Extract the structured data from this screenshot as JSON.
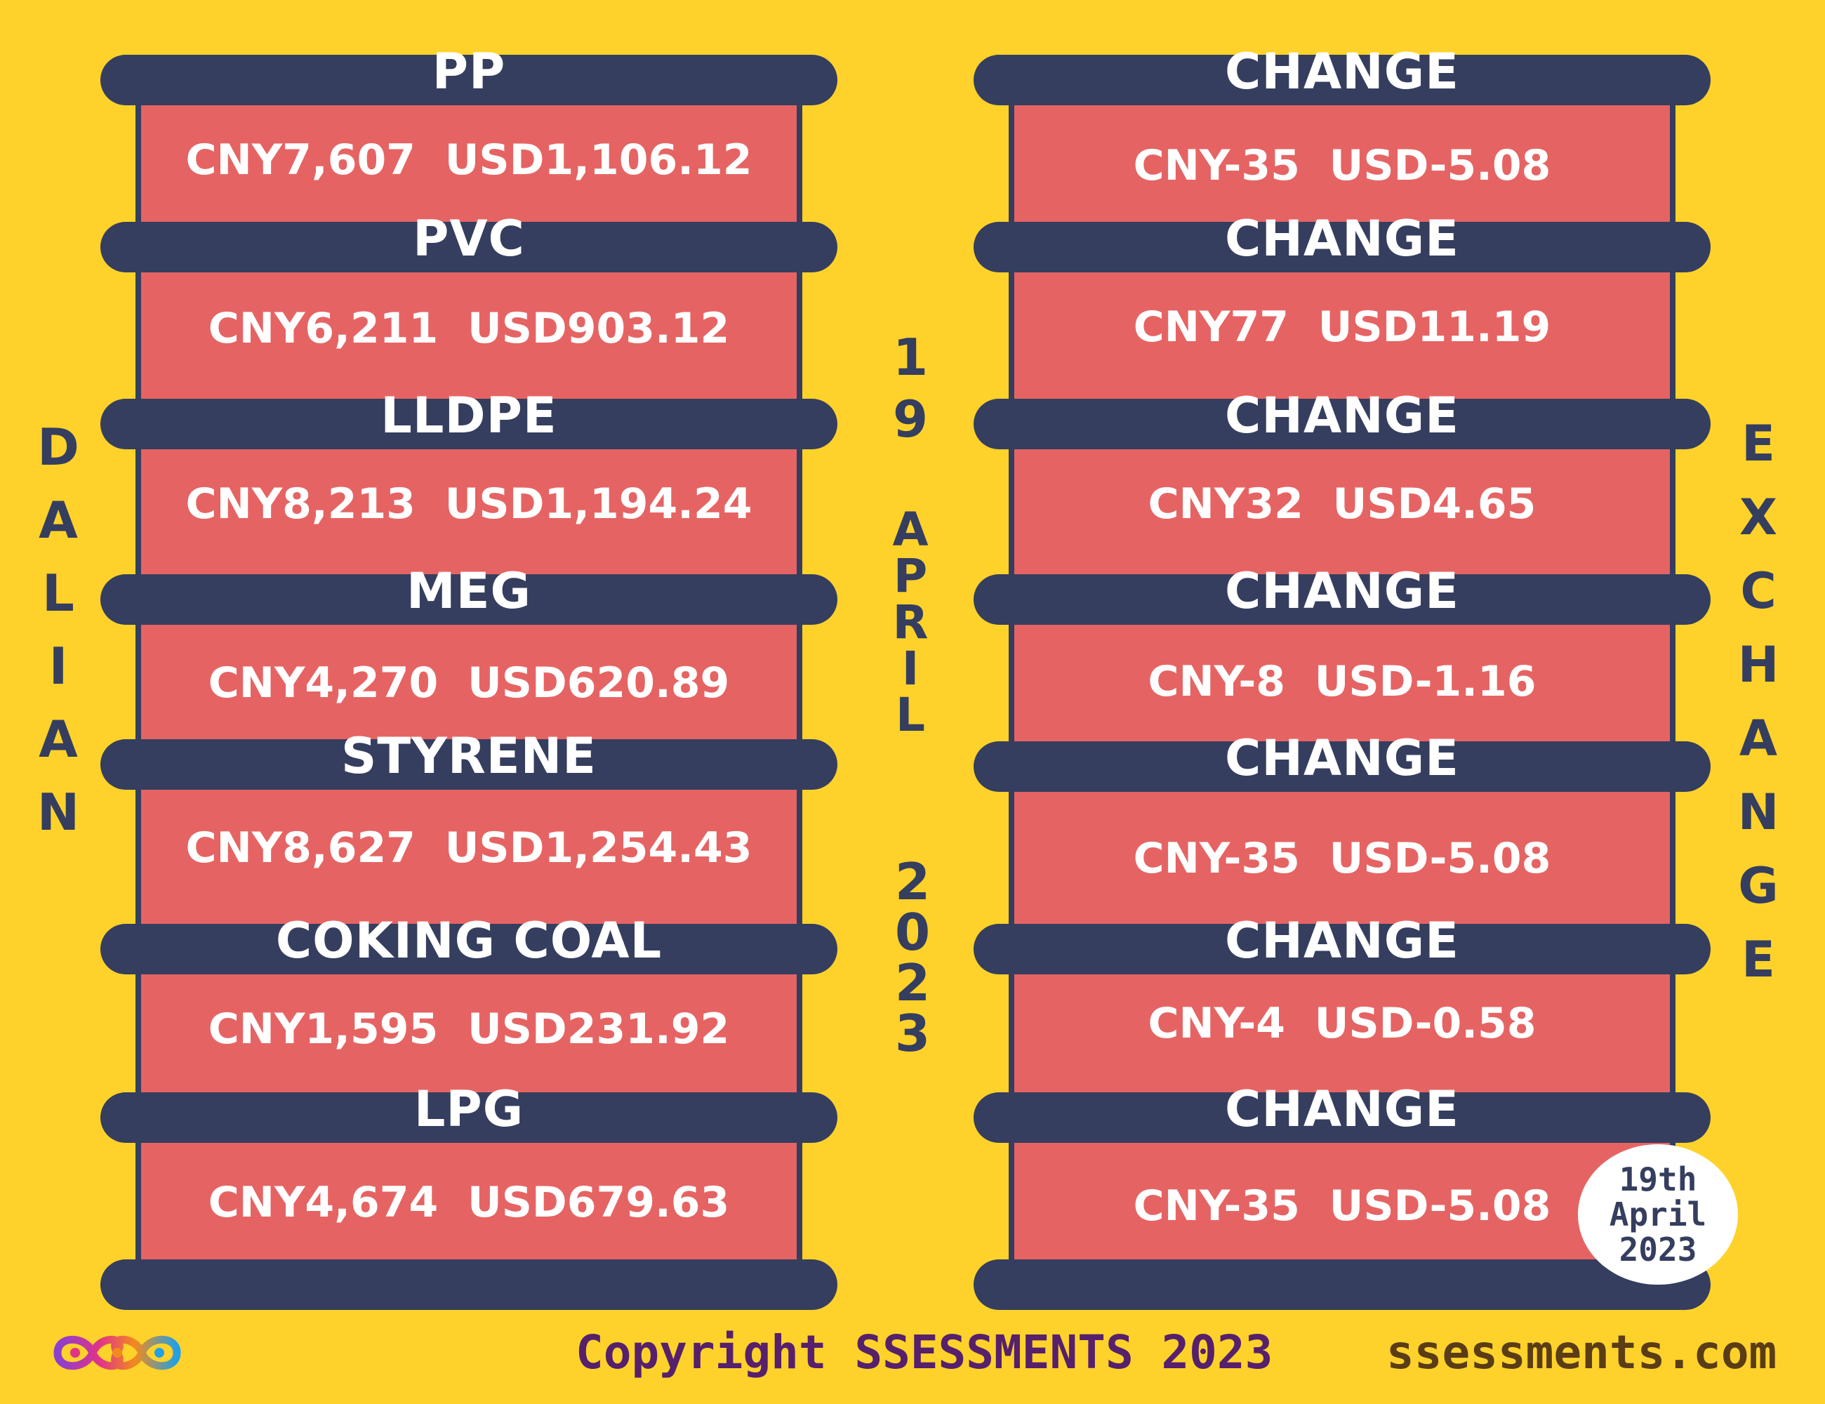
{
  "left_column": {
    "products": [
      {
        "name": "PP",
        "value": "CNY7,607  USD1,106.12"
      },
      {
        "name": "PVC",
        "value": "CNY6,211  USD903.12"
      },
      {
        "name": "LLDPE",
        "value": "CNY8,213  USD1,194.24"
      },
      {
        "name": "MEG",
        "value": "CNY4,270  USD620.89"
      },
      {
        "name": "STYRENE",
        "value": "CNY8,627  USD1,254.43"
      },
      {
        "name": "COKING COAL",
        "value": "CNY1,595  USD231.92"
      },
      {
        "name": "LPG",
        "value": "CNY4,674  USD679.63"
      }
    ]
  },
  "right_column": {
    "changes": [
      {
        "label": "CHANGE",
        "value": "CNY-35  USD-5.08"
      },
      {
        "label": "CHANGE",
        "value": "CNY77  USD11.19"
      },
      {
        "label": "CHANGE",
        "value": "CNY32  USD4.65"
      },
      {
        "label": "CHANGE",
        "value": "CNY-8  USD-1.16"
      },
      {
        "label": "CHANGE",
        "value": "CNY-35  USD-5.08"
      },
      {
        "label": "CHANGE",
        "value": "CNY-4  USD-0.58"
      },
      {
        "label": "CHANGE",
        "value": "CNY-35  USD-5.08"
      }
    ]
  },
  "side_text_left": [
    "D",
    "A",
    "L",
    "I",
    "A",
    "N"
  ],
  "side_text_right": [
    "E",
    "X",
    "C",
    "H",
    "A",
    "N",
    "G",
    "E"
  ],
  "center_date": {
    "day": [
      "1",
      "9"
    ],
    "month": [
      "A",
      "P",
      "R",
      "I",
      "L"
    ],
    "year": [
      "2",
      "0",
      "2",
      "3"
    ]
  },
  "badge": {
    "line1": "19th",
    "line2": "April",
    "line3": "2023"
  },
  "footer": {
    "copyright": "Copyright SSESSMENTS 2023",
    "website": "ssessments.com"
  },
  "colors": {
    "background": "#FED22A",
    "panel": "#E56463",
    "bar": "#353E5E",
    "copyright": "#56206C",
    "website": "#5A3D16"
  }
}
